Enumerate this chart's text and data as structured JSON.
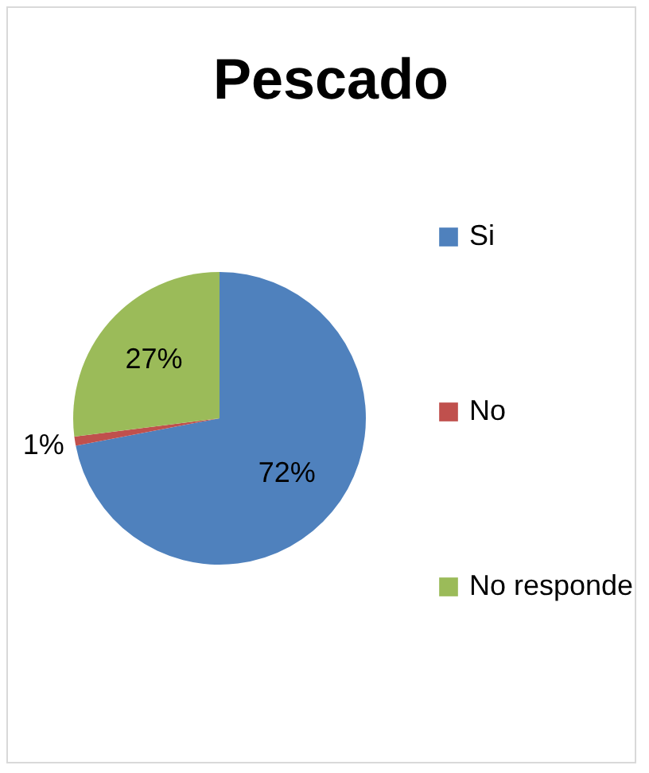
{
  "chart_data": {
    "type": "pie",
    "title": "Pescado",
    "categories": [
      "Si",
      "No",
      "No responde"
    ],
    "values": [
      72,
      1,
      27
    ],
    "colors": [
      "#4f81bd",
      "#c0504d",
      "#9bbb59"
    ],
    "value_labels": [
      "72%",
      "1%",
      "27%"
    ],
    "legend": "right"
  }
}
